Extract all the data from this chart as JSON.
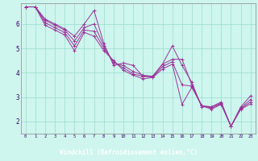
{
  "xlabel": "Windchill (Refroidissement éolien,°C)",
  "background_color": "#cef5ee",
  "label_bar_color": "#6633aa",
  "line_color": "#993399",
  "grid_color": "#99ddcc",
  "xmin": -0.5,
  "xmax": 23.5,
  "ymin": 1.5,
  "ymax": 6.85,
  "yticks": [
    2,
    3,
    4,
    5,
    6
  ],
  "xticks": [
    0,
    1,
    2,
    3,
    4,
    5,
    6,
    7,
    8,
    9,
    10,
    11,
    12,
    13,
    14,
    15,
    16,
    17,
    18,
    19,
    20,
    21,
    22,
    23
  ],
  "lines": [
    [
      6.7,
      6.7,
      6.2,
      6.0,
      5.8,
      5.5,
      6.0,
      6.55,
      5.2,
      4.3,
      4.4,
      4.3,
      3.85,
      3.85,
      4.35,
      5.1,
      4.3,
      3.6,
      2.6,
      2.6,
      2.8,
      1.8,
      2.6,
      3.05
    ],
    [
      6.7,
      6.7,
      6.15,
      5.95,
      5.75,
      5.3,
      5.85,
      6.0,
      5.1,
      4.4,
      4.3,
      4.05,
      3.9,
      3.85,
      4.35,
      4.55,
      4.55,
      3.5,
      2.65,
      2.6,
      2.75,
      1.8,
      2.55,
      2.9
    ],
    [
      6.7,
      6.7,
      6.05,
      5.85,
      5.65,
      5.1,
      5.75,
      5.7,
      5.0,
      4.45,
      4.2,
      3.95,
      3.85,
      3.82,
      4.25,
      4.45,
      3.5,
      3.45,
      2.65,
      2.55,
      2.72,
      1.8,
      2.52,
      2.8
    ],
    [
      6.7,
      6.7,
      5.95,
      5.75,
      5.55,
      4.9,
      5.65,
      5.5,
      4.9,
      4.5,
      4.1,
      3.9,
      3.75,
      3.8,
      4.15,
      4.35,
      2.7,
      3.4,
      2.65,
      2.5,
      2.7,
      1.8,
      2.5,
      2.72
    ]
  ]
}
